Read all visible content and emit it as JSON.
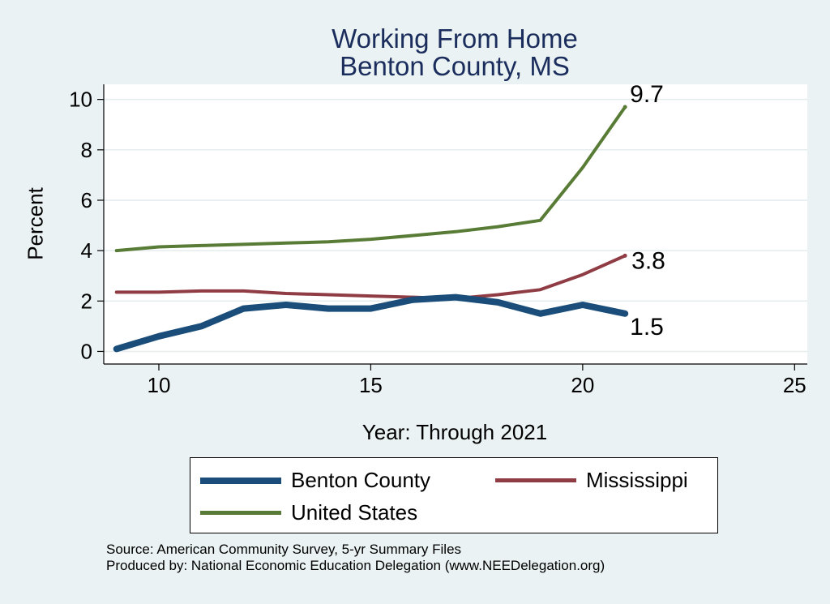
{
  "title_line1": "Working From Home",
  "title_line2": "Benton County, MS",
  "source_line1": "Source: American Community Survey, 5-yr Summary Files",
  "source_line2": "Produced by: National Economic Education Delegation (www.NEEDelegation.org)",
  "chart_data": {
    "type": "line",
    "title": "Working From Home\nBenton County, MS",
    "xlabel": "Year: Through 2021",
    "ylabel": "Percent",
    "xlim": [
      8.7,
      25.3
    ],
    "ylim": [
      -0.5,
      10.6
    ],
    "xticks": [
      10,
      15,
      20,
      25
    ],
    "yticks": [
      0,
      2,
      4,
      6,
      8,
      10
    ],
    "grid": "horizontal",
    "legend_position": "bottom",
    "x": [
      9,
      10,
      11,
      12,
      13,
      14,
      15,
      16,
      17,
      18,
      19,
      20,
      21
    ],
    "series": [
      {
        "name": "Benton County",
        "color": "#1a4d7a",
        "width": 8,
        "values": [
          0.1,
          0.6,
          1.0,
          1.7,
          1.85,
          1.7,
          1.7,
          2.05,
          2.15,
          1.95,
          1.5,
          1.85,
          1.5
        ],
        "end_label": "1.5"
      },
      {
        "name": "Mississippi",
        "color": "#903c44",
        "width": 4,
        "values": [
          2.35,
          2.35,
          2.4,
          2.4,
          2.3,
          2.25,
          2.2,
          2.15,
          2.1,
          2.25,
          2.45,
          3.05,
          3.8
        ],
        "end_label": "3.8"
      },
      {
        "name": "United States",
        "color": "#587b35",
        "width": 4,
        "values": [
          4.0,
          4.15,
          4.2,
          4.25,
          4.3,
          4.35,
          4.45,
          4.6,
          4.75,
          4.95,
          5.2,
          7.3,
          9.7
        ],
        "end_label": "9.7"
      }
    ]
  }
}
